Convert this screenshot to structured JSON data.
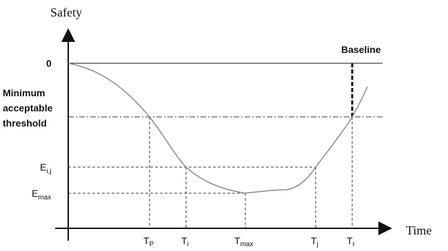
{
  "axes": {
    "y_title": "Safety",
    "x_title": "Time",
    "zero_label": "0"
  },
  "annotations": {
    "baseline": "Baseline",
    "threshold_line1": "Minimum",
    "threshold_line2": "acceptable",
    "threshold_line3": "threshold"
  },
  "y_levels": {
    "e_ij_main": "E",
    "e_ij_sub": "i,j",
    "e_max_main": "E",
    "e_max_sub": "max"
  },
  "x_ticks": [
    {
      "main": "T",
      "sub": "P"
    },
    {
      "main": "T",
      "sub": "i"
    },
    {
      "main": "T",
      "sub": "max"
    },
    {
      "main": "T",
      "sub": "j"
    },
    {
      "main": "T",
      "sub": "r"
    }
  ],
  "colors": {
    "axis": "#111111",
    "curve": "#8a8a8a",
    "dashed": "#333333"
  }
}
